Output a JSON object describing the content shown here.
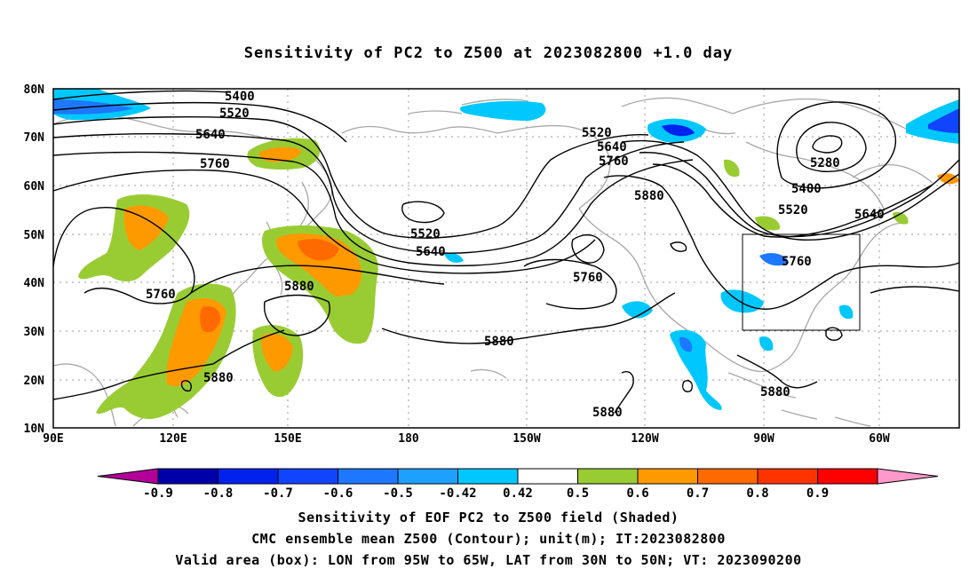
{
  "title": "Sensitivity of PC2 to Z500 at 2023082800 +1.0 day",
  "map": {
    "lon_labels": [
      "90E",
      "120E",
      "150E",
      "180",
      "150W",
      "120W",
      "90W",
      "60W"
    ],
    "lat_labels": [
      "80N",
      "70N",
      "60N",
      "50N",
      "40N",
      "30N",
      "20N",
      "10N"
    ],
    "contour_labels": [
      {
        "text": "5400"
      },
      {
        "text": "5520"
      },
      {
        "text": "5640"
      },
      {
        "text": "5760"
      },
      {
        "text": "5760"
      },
      {
        "text": "5880"
      },
      {
        "text": "5880"
      },
      {
        "text": "5520"
      },
      {
        "text": "5640"
      },
      {
        "text": "5880"
      },
      {
        "text": "5520"
      },
      {
        "text": "5640"
      },
      {
        "text": "5760"
      },
      {
        "text": "5880"
      },
      {
        "text": "5760"
      },
      {
        "text": "5880"
      },
      {
        "text": "5280"
      },
      {
        "text": "5400"
      },
      {
        "text": "5520"
      },
      {
        "text": "5640"
      },
      {
        "text": "5760"
      },
      {
        "text": "5880"
      }
    ],
    "valid_box": {
      "lon_from": "95W",
      "lon_to": "65W",
      "lat_from": "30N",
      "lat_to": "50N"
    }
  },
  "colorbar": {
    "labels": [
      "-0.9",
      "-0.8",
      "-0.7",
      "-0.6",
      "-0.5",
      "-0.42",
      "0.42",
      "0.5",
      "0.6",
      "0.7",
      "0.8",
      "0.9"
    ],
    "colors": [
      "#b30099",
      "#0000aa",
      "#0022ee",
      "#1144ff",
      "#1e78ff",
      "#1ea0ff",
      "#00c8ff",
      "#ffffff",
      "#99cc33",
      "#ff9900",
      "#ff6a00",
      "#ff3300",
      "#ff0000",
      "#ff99cc"
    ]
  },
  "captions": {
    "line1": "Sensitivity of EOF PC2 to Z500 field (Shaded)",
    "line2": "CMC ensemble mean Z500 (Contour); unit(m); IT:2023082800",
    "line3": "Valid area (box): LON from 95W to 65W, LAT from 30N to 50N; VT: 2023090200"
  }
}
